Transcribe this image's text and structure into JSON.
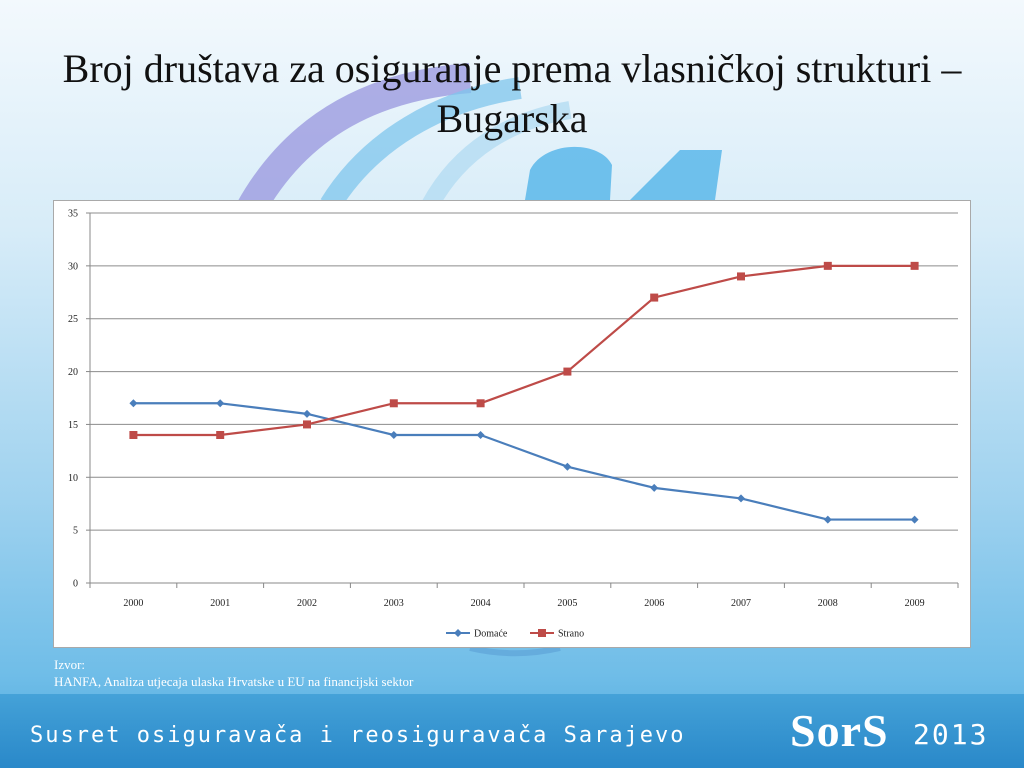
{
  "slide": {
    "title": "Broj društava za osiguranje prema vlasničkoj strukturi – Bugarska",
    "source_heading": "Izvor:",
    "source_text": "HANFA, Analiza utjecaja ulaska Hrvatske u EU na financijski sektor",
    "footer_text": "Susret osiguravača i reosiguravača Sarajevo",
    "brand_name": "SorS",
    "brand_year": "2013",
    "accent_colors": {
      "arc_purple": "#9c9be0",
      "arc_blue": "#6fc0ea",
      "logo_blue": "#5bb7ea"
    }
  },
  "chart_data": {
    "type": "line",
    "categories": [
      "2000",
      "2001",
      "2002",
      "2003",
      "2004",
      "2005",
      "2006",
      "2007",
      "2008",
      "2009"
    ],
    "series": [
      {
        "name": "Domaće",
        "values": [
          17,
          17,
          16,
          14,
          14,
          11,
          9,
          8,
          6,
          6
        ],
        "color": "#4a7ebb",
        "marker": "diamond"
      },
      {
        "name": "Strano",
        "values": [
          14,
          14,
          15,
          17,
          17,
          20,
          27,
          29,
          30,
          30
        ],
        "color": "#be4b48",
        "marker": "square"
      }
    ],
    "title": "",
    "xlabel": "",
    "ylabel": "",
    "ylim": [
      0,
      35
    ],
    "yticks": [
      "0",
      "5",
      "10",
      "15",
      "20",
      "25",
      "30",
      "35"
    ],
    "grid": true,
    "legend_position": "bottom"
  }
}
